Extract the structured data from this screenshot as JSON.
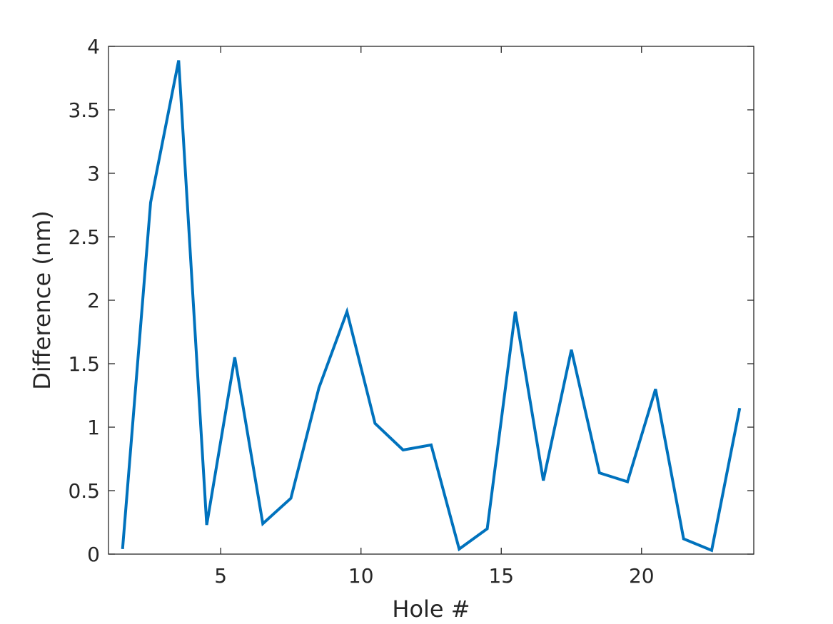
{
  "chart_data": {
    "type": "line",
    "xlabel": "Hole #",
    "ylabel": "Difference (nm)",
    "xlim": [
      1,
      24
    ],
    "ylim": [
      0,
      4
    ],
    "xticks": [
      5,
      10,
      15,
      20
    ],
    "yticks": [
      0,
      0.5,
      1,
      1.5,
      2,
      2.5,
      3,
      3.5,
      4
    ],
    "ytick_labels": [
      "0",
      "0.5",
      "1",
      "1.5",
      "2",
      "2.5",
      "3",
      "3.5",
      "4"
    ],
    "xtick_labels": [
      "5",
      "10",
      "15",
      "20"
    ],
    "grid": false,
    "series": [
      {
        "color": "#0072BD",
        "x": [
          1.5,
          2.5,
          3.5,
          4.5,
          5.5,
          6.5,
          7.5,
          8.5,
          9.5,
          10.5,
          11.5,
          12.5,
          13.5,
          14.5,
          15.5,
          16.5,
          17.5,
          18.5,
          19.5,
          20.5,
          21.5,
          22.5,
          23.5
        ],
        "y": [
          0.04,
          2.77,
          3.89,
          0.23,
          1.55,
          0.24,
          0.44,
          1.31,
          1.91,
          1.03,
          0.82,
          0.86,
          0.04,
          0.2,
          1.91,
          0.58,
          1.61,
          0.64,
          0.57,
          1.3,
          0.12,
          0.03,
          1.15
        ]
      }
    ]
  }
}
